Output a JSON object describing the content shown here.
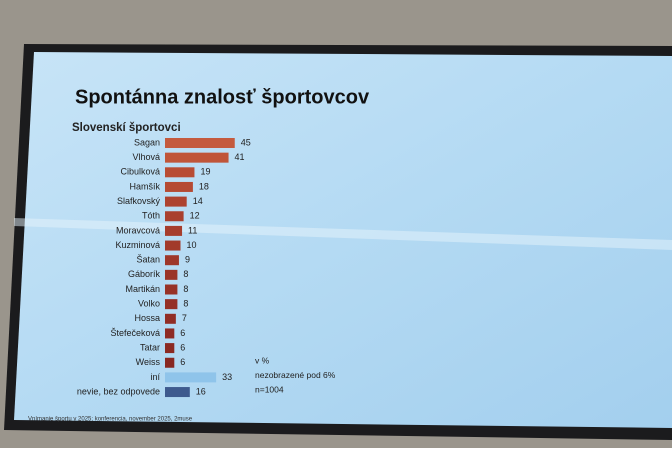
{
  "chart_data": {
    "type": "bar",
    "orientation": "horizontal",
    "title": "Spontánna znalosť športovcov",
    "subtitle": "Slovenskí športovci",
    "categories": [
      "Sagan",
      "Vlhová",
      "Cibulková",
      "Hamšík",
      "Slafkovský",
      "Tóth",
      "Moravcová",
      "Kuzminová",
      "Šatan",
      "Gáborík",
      "Martikán",
      "Volko",
      "Hossa",
      "Štefečeková",
      "Tatar",
      "Weiss",
      "iní",
      "nevie, bez odpovede"
    ],
    "values": [
      45,
      41,
      19,
      18,
      14,
      12,
      11,
      10,
      9,
      8,
      8,
      8,
      7,
      6,
      6,
      6,
      33,
      16
    ],
    "colors": [
      "#c45a3e",
      "#c05539",
      "#b84c34",
      "#b54a33",
      "#ad4330",
      "#a9402e",
      "#a63d2d",
      "#a23a2b",
      "#9e372a",
      "#9a3428",
      "#973227",
      "#942f26",
      "#912d25",
      "#8e2b24",
      "#8b2a23",
      "#882822",
      "#8fc4ea",
      "#3e5a8e"
    ],
    "annotations": [
      "v %",
      "nezobrazené pod 6%",
      "n=1004"
    ],
    "footer": "Vnímanie športu v 2025; konferencia, november 2025, 2muse"
  }
}
